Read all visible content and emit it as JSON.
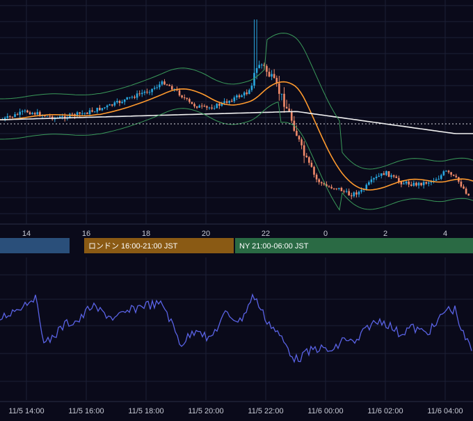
{
  "colors": {
    "background": "#0a0a1a",
    "grid": "#1c2036",
    "axis_text": "#c8cbd6",
    "candle_up": "#29a8e0",
    "candle_down": "#f08a6a",
    "ma_short": "#ff9a2e",
    "ma_long": "#f2f2f2",
    "bollinger": "#3a9a5a",
    "oscillator": "#5a63e6",
    "session_tokyo": "#2a4f7a",
    "session_london": "#8a5a14",
    "session_ny": "#2a6a44"
  },
  "sessions": [
    {
      "label": ""
    },
    {
      "label": "ロンドン 16:00-21:00 JST"
    },
    {
      "label": "NY 21:00-06:00 JST"
    }
  ],
  "chart_data": [
    {
      "type": "candlestick",
      "title": "",
      "x_tick_labels": [
        "14",
        "16",
        "18",
        "20",
        "22",
        "0",
        "2",
        "4"
      ],
      "overlays": [
        "moving-average-short",
        "moving-average-long",
        "bollinger-bands",
        "reference-dotted-line"
      ],
      "grid": true,
      "shape": "rises gradually from 14:00 to 22:00, spikes sharply near 22:00, then drops steeply around 23:00 and consolidates low with a mild recovery toward 04:00"
    },
    {
      "type": "line",
      "title": "",
      "series": [
        {
          "values": []
        }
      ],
      "x_tick_labels": [
        "11/5 14:00",
        "11/5 16:00",
        "11/5 18:00",
        "11/5 20:00",
        "11/5 22:00",
        "11/6 00:00",
        "11/6 02:00",
        "11/6 04:00"
      ],
      "grid": true
    }
  ]
}
